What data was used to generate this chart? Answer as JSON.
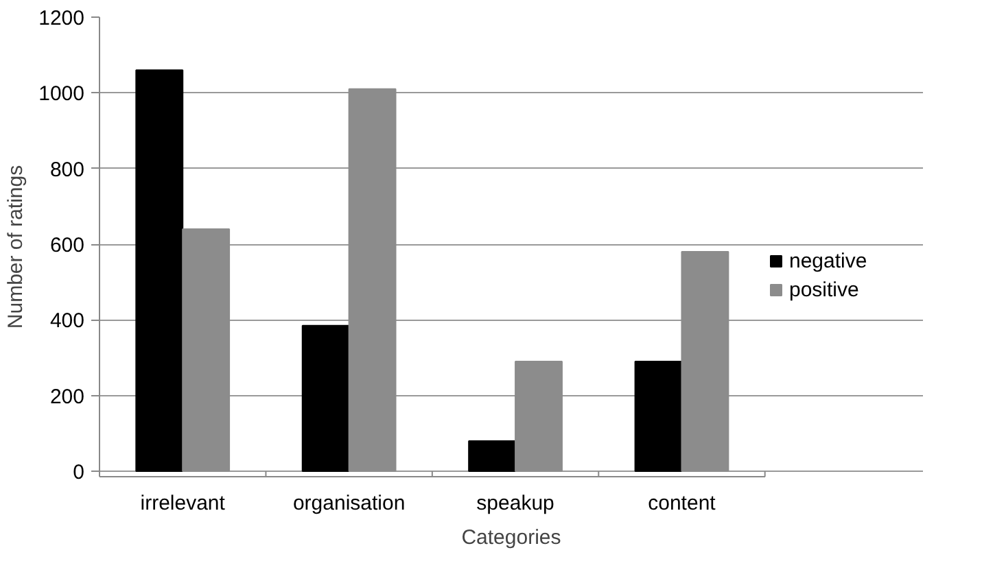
{
  "chart_data": {
    "type": "bar",
    "xlabel": "Categories",
    "ylabel": "Number of ratings",
    "categories": [
      "irrelevant",
      "organisation",
      "speakup",
      "content"
    ],
    "series": [
      {
        "name": "negative",
        "color": "#000000",
        "values": [
          1060,
          385,
          80,
          290
        ]
      },
      {
        "name": "positive",
        "color": "#8c8c8c",
        "values": [
          640,
          1010,
          290,
          580
        ]
      }
    ],
    "ylim": [
      0,
      1200
    ],
    "yticks": [
      0,
      200,
      400,
      600,
      800,
      1000,
      1200
    ],
    "grid": "y",
    "legend": "right"
  }
}
